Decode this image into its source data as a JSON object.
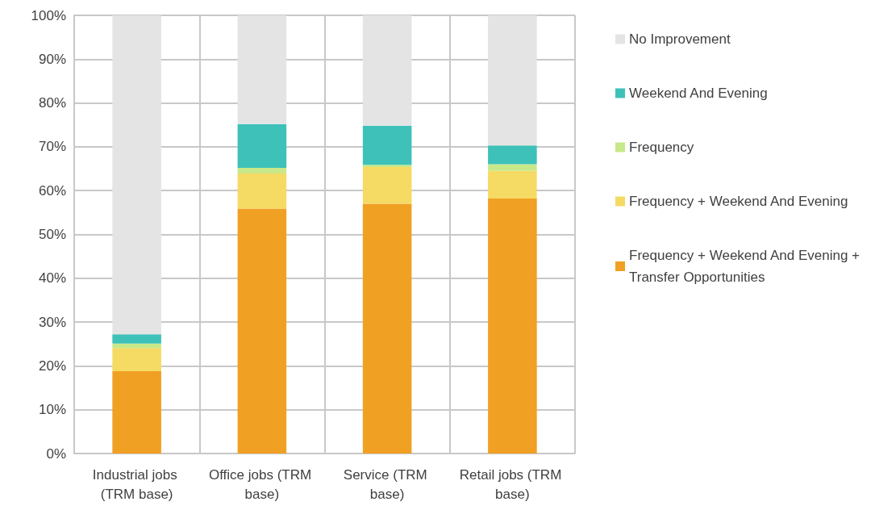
{
  "chart_data": {
    "type": "bar",
    "stacked": true,
    "grid": true,
    "legend": "right",
    "categories": [
      "Industrial jobs (TRM base)",
      "Office jobs (TRM base)",
      "Service (TRM base)",
      "Retail jobs (TRM base)"
    ],
    "series": [
      {
        "name": "Frequency + Weekend And Evening + Transfer Opportunities",
        "color": "#f0a023",
        "values": [
          18.8,
          55.9,
          57.0,
          58.2
        ]
      },
      {
        "name": "Frequency + Weekend And Evening",
        "color": "#f5da63",
        "values": [
          5.3,
          8.0,
          8.4,
          6.3
        ]
      },
      {
        "name": "Frequency",
        "color": "#c8e88a",
        "values": [
          1.0,
          1.3,
          0.5,
          1.5
        ]
      },
      {
        "name": "Weekend And Evening",
        "color": "#3ec1b9",
        "values": [
          2.1,
          10.0,
          8.9,
          4.3
        ]
      },
      {
        "name": "No Improvement",
        "color": "#e4e4e4",
        "values": [
          72.8,
          24.8,
          25.2,
          29.7
        ]
      }
    ],
    "ylim": [
      0,
      100
    ],
    "yticks": [
      {
        "value": 0,
        "label": "0%"
      },
      {
        "value": 10,
        "label": "10%"
      },
      {
        "value": 20,
        "label": "20%"
      },
      {
        "value": 30,
        "label": "30%"
      },
      {
        "value": 40,
        "label": "40%"
      },
      {
        "value": 50,
        "label": "50%"
      },
      {
        "value": 60,
        "label": "60%"
      },
      {
        "value": 70,
        "label": "70%"
      },
      {
        "value": 80,
        "label": "80%"
      },
      {
        "value": 90,
        "label": "90%"
      },
      {
        "value": 100,
        "label": "100%"
      }
    ]
  }
}
